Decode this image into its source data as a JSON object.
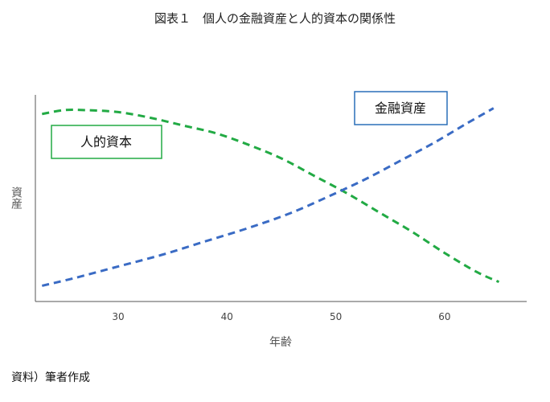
{
  "title": "図表１　個人の金融資産と人的資本の関係性",
  "source": "資料）筆者作成",
  "chart_data": {
    "type": "line",
    "title": "図表１　個人の金融資産と人的資本の関係性",
    "xlabel": "年齢",
    "ylabel": "資産",
    "xlim": [
      22,
      67
    ],
    "ylim": [
      0,
      100
    ],
    "xticks": [
      30,
      40,
      50,
      60
    ],
    "yticks": [],
    "grid": false,
    "series": [
      {
        "name": "人的資本",
        "color": "#22aa44",
        "style": "dashed",
        "x": [
          23,
          25,
          27,
          30,
          33,
          36,
          39,
          42,
          45,
          48,
          51,
          54,
          57,
          60,
          63,
          65
        ],
        "y": [
          93,
          95,
          95,
          94,
          91,
          87,
          83,
          77,
          70,
          61,
          52,
          42,
          32,
          21,
          11,
          6
        ]
      },
      {
        "name": "金融資産",
        "color": "#3a6bc4",
        "style": "dashed",
        "x": [
          23,
          26,
          30,
          34,
          38,
          42,
          46,
          50,
          53,
          56,
          59,
          62,
          64.5
        ],
        "y": [
          4,
          8,
          14,
          20,
          27,
          34,
          42,
          52,
          60,
          69,
          78,
          88,
          96
        ]
      }
    ],
    "annotations": [
      {
        "text": "人的資本",
        "series": "人的資本",
        "border_color": "#22aa44"
      },
      {
        "text": "金融資産",
        "series": "金融資産",
        "border_color": "#2a6fb8"
      }
    ]
  }
}
